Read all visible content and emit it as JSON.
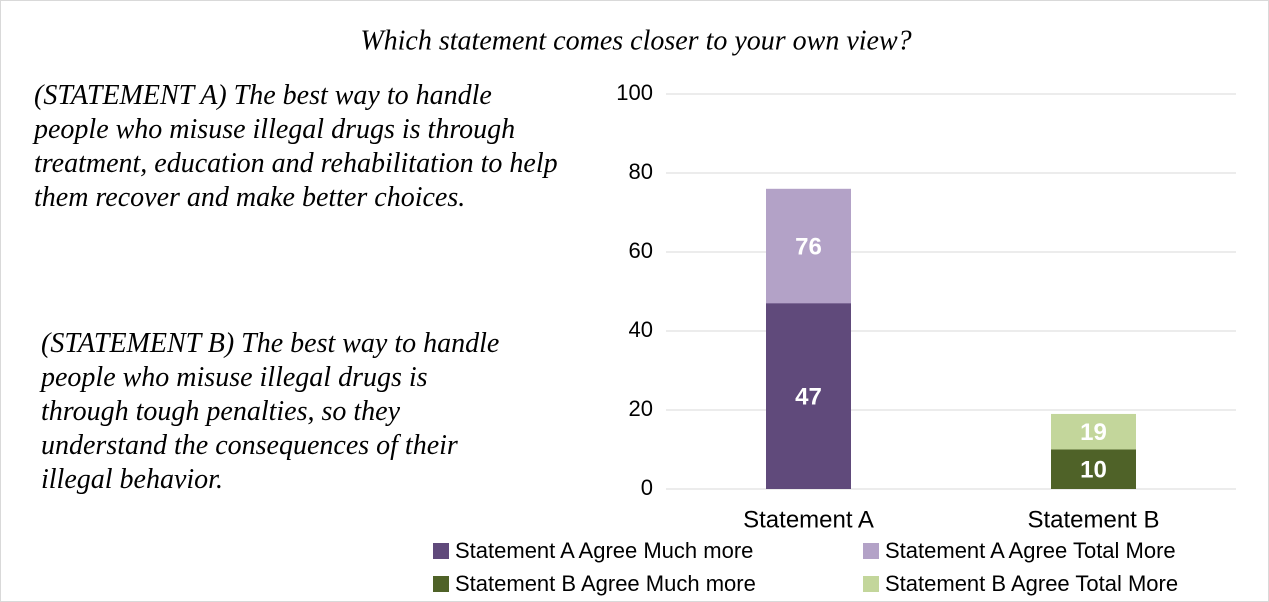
{
  "statements": [
    "(STATEMENT A) The best way to handle people who misuse illegal drugs is through treatment, education and rehabilitation to help them recover and make better choices.",
    "(STATEMENT B) The best way to handle people who misuse illegal drugs is through tough penalties, so they understand the consequences of their illegal behavior."
  ],
  "chart_data": {
    "type": "bar",
    "title": "Which statement comes closer to your own view?",
    "categories": [
      "Statement A",
      "Statement B"
    ],
    "series": [
      {
        "name": "Statement A Agree Much more",
        "color": "#604a7b",
        "values": [
          47,
          null
        ]
      },
      {
        "name": "Statement A Agree Total More",
        "color": "#b3a2c7",
        "values": [
          76,
          null
        ]
      },
      {
        "name": "Statement B Agree Much more",
        "color": "#4f6228",
        "values": [
          null,
          10
        ]
      },
      {
        "name": "Statement B Agree Total More",
        "color": "#c3d69b",
        "values": [
          null,
          19
        ]
      }
    ],
    "ylim": [
      0,
      100
    ],
    "yticks": [
      0,
      20,
      40,
      60,
      80,
      100
    ],
    "grid": true
  }
}
